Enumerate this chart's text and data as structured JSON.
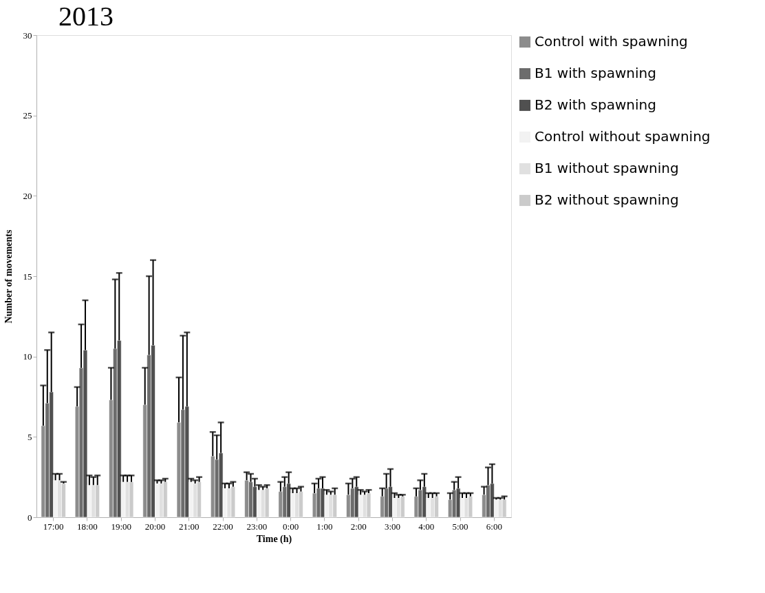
{
  "chart_data": {
    "type": "bar",
    "title": "2013",
    "xlabel": "Time (h)",
    "ylabel": "Number of movements",
    "categories": [
      "17:00",
      "18:00",
      "19:00",
      "20:00",
      "21:00",
      "22:00",
      "23:00",
      "0:00",
      "1:00",
      "2:00",
      "3:00",
      "4:00",
      "5:00",
      "6:00"
    ],
    "ylim": [
      0,
      30
    ],
    "yticks": [
      0,
      5,
      10,
      15,
      20,
      25,
      30
    ],
    "grid": false,
    "legend": "right",
    "series": [
      {
        "name": "Control with spawning",
        "color": "#8c8c8c",
        "values": [
          5.7,
          6.9,
          7.3,
          7.0,
          5.9,
          3.8,
          2.3,
          1.6,
          1.5,
          1.4,
          1.3,
          1.3,
          1.1,
          1.4
        ],
        "errors": [
          [
            5.7,
            8.2
          ],
          [
            6.9,
            8.1
          ],
          [
            7.3,
            9.3
          ],
          [
            7.0,
            9.3
          ],
          [
            5.9,
            8.7
          ],
          [
            3.8,
            5.3
          ],
          [
            2.3,
            2.8
          ],
          [
            1.6,
            2.2
          ],
          [
            1.5,
            2.1
          ],
          [
            1.4,
            2.1
          ],
          [
            1.3,
            1.8
          ],
          [
            1.3,
            1.8
          ],
          [
            1.1,
            1.5
          ],
          [
            1.4,
            1.9
          ]
        ]
      },
      {
        "name": "B1 with spawning",
        "color": "#6c6c6c",
        "values": [
          7.1,
          9.3,
          10.5,
          10.1,
          6.7,
          3.6,
          2.2,
          1.9,
          1.8,
          1.8,
          1.8,
          1.7,
          1.7,
          2.0
        ],
        "errors": [
          [
            7.1,
            10.4
          ],
          [
            9.3,
            12.0
          ],
          [
            10.5,
            14.8
          ],
          [
            10.1,
            15.0
          ],
          [
            6.7,
            11.3
          ],
          [
            3.6,
            5.1
          ],
          [
            2.2,
            2.7
          ],
          [
            1.9,
            2.5
          ],
          [
            1.8,
            2.4
          ],
          [
            1.8,
            2.4
          ],
          [
            1.8,
            2.7
          ],
          [
            1.7,
            2.3
          ],
          [
            1.7,
            2.2
          ],
          [
            2.0,
            3.1
          ]
        ]
      },
      {
        "name": "B2 with spawning",
        "color": "#505050",
        "values": [
          7.8,
          10.4,
          11.0,
          10.7,
          6.9,
          4.0,
          1.9,
          2.1,
          1.8,
          1.9,
          1.9,
          1.9,
          1.8,
          2.1
        ],
        "errors": [
          [
            7.8,
            11.5
          ],
          [
            10.4,
            13.5
          ],
          [
            11.0,
            15.2
          ],
          [
            10.7,
            16.0
          ],
          [
            6.9,
            11.5
          ],
          [
            4.0,
            5.9
          ],
          [
            1.9,
            2.4
          ],
          [
            2.1,
            2.8
          ],
          [
            1.8,
            2.5
          ],
          [
            1.9,
            2.5
          ],
          [
            1.9,
            3.0
          ],
          [
            1.9,
            2.7
          ],
          [
            1.8,
            2.5
          ],
          [
            2.1,
            3.3
          ]
        ]
      },
      {
        "name": "Control without spawning",
        "color": "#f2f2f2",
        "values": [
          2.3,
          2.0,
          2.2,
          2.1,
          2.2,
          1.8,
          1.7,
          1.5,
          1.4,
          1.4,
          1.2,
          1.2,
          1.2,
          1.1
        ],
        "errors": [
          [
            2.3,
            2.7
          ],
          [
            2.0,
            2.6
          ],
          [
            2.2,
            2.6
          ],
          [
            2.1,
            2.3
          ],
          [
            2.2,
            2.4
          ],
          [
            1.8,
            2.1
          ],
          [
            1.7,
            2.0
          ],
          [
            1.5,
            1.8
          ],
          [
            1.4,
            1.7
          ],
          [
            1.4,
            1.7
          ],
          [
            1.2,
            1.5
          ],
          [
            1.2,
            1.5
          ],
          [
            1.2,
            1.5
          ],
          [
            1.1,
            1.2
          ]
        ]
      },
      {
        "name": "B1 without spawning",
        "color": "#e0e0e0",
        "values": [
          2.3,
          2.0,
          2.2,
          2.1,
          2.1,
          1.8,
          1.7,
          1.5,
          1.4,
          1.4,
          1.2,
          1.2,
          1.2,
          1.1
        ],
        "errors": [
          [
            2.3,
            2.7
          ],
          [
            2.0,
            2.5
          ],
          [
            2.2,
            2.6
          ],
          [
            2.1,
            2.3
          ],
          [
            2.1,
            2.3
          ],
          [
            1.8,
            2.1
          ],
          [
            1.7,
            1.9
          ],
          [
            1.5,
            1.8
          ],
          [
            1.4,
            1.6
          ],
          [
            1.4,
            1.6
          ],
          [
            1.2,
            1.4
          ],
          [
            1.2,
            1.5
          ],
          [
            1.2,
            1.5
          ],
          [
            1.1,
            1.2
          ]
        ]
      },
      {
        "name": "B2 without spawning",
        "color": "#cbcbcb",
        "values": [
          2.1,
          2.0,
          2.2,
          2.2,
          2.2,
          1.9,
          1.8,
          1.6,
          1.4,
          1.5,
          1.3,
          1.3,
          1.3,
          1.1
        ],
        "errors": [
          [
            2.1,
            2.2
          ],
          [
            2.0,
            2.6
          ],
          [
            2.2,
            2.6
          ],
          [
            2.2,
            2.4
          ],
          [
            2.2,
            2.5
          ],
          [
            1.9,
            2.2
          ],
          [
            1.8,
            2.0
          ],
          [
            1.6,
            1.9
          ],
          [
            1.4,
            1.8
          ],
          [
            1.5,
            1.7
          ],
          [
            1.3,
            1.4
          ],
          [
            1.3,
            1.5
          ],
          [
            1.3,
            1.5
          ],
          [
            1.1,
            1.3
          ]
        ]
      }
    ]
  }
}
